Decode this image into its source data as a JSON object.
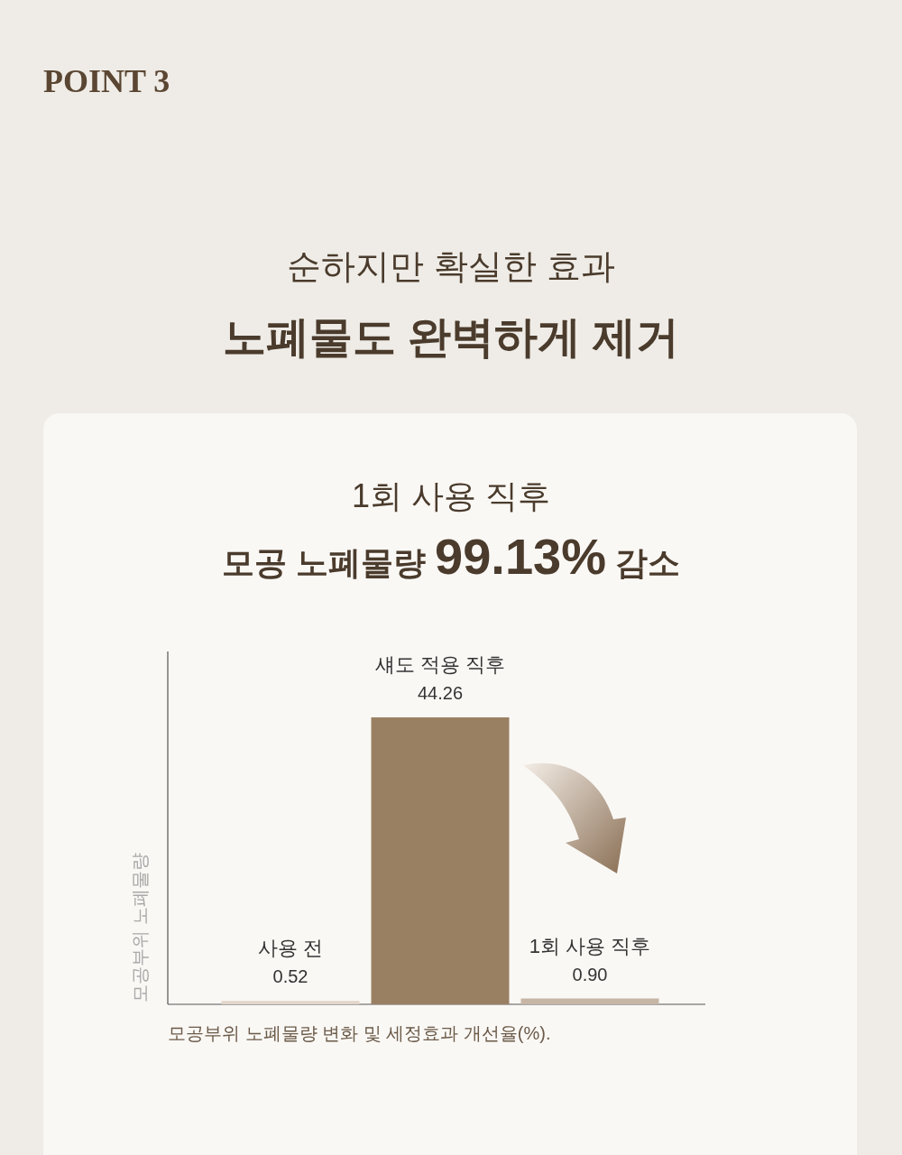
{
  "chart_data": {
    "type": "bar",
    "title": "순하지만 확실한 효과",
    "subtitle": "노폐물도 완벽하게 제거",
    "annotations": [
      "POINT 3",
      "1회 사용 직후",
      "모공 노폐물량 99.13% 감소",
      "모공부위 노폐물량 변화 및 세정효과 개선율(%)."
    ],
    "ylabel": "모공부위 노폐물량",
    "categories": [
      "사용 전",
      "섀도 적용 직후",
      "1회 사용 직후"
    ],
    "values": [
      0.52,
      44.26,
      0.9
    ],
    "colors": [
      "#e2d6ca",
      "#9a8063",
      "#c7b5a5"
    ],
    "value_labels": [
      "0.52",
      "44.26",
      "0.90"
    ]
  }
}
